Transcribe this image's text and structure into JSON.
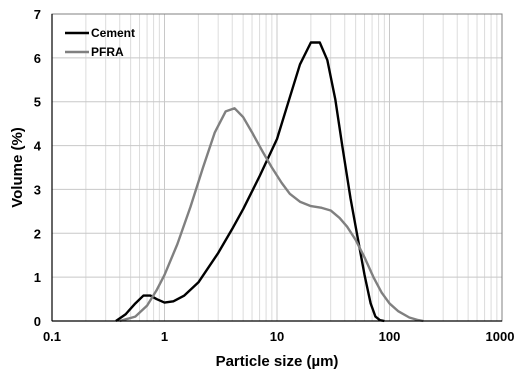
{
  "chart_data": {
    "type": "line",
    "xlabel": "Particle size (µm)",
    "ylabel": "Volume (%)",
    "x_scale": "log",
    "xlim": [
      0.1,
      1000
    ],
    "ylim": [
      0,
      7
    ],
    "x_ticks": [
      0.1,
      1,
      10,
      100,
      1000
    ],
    "x_tick_labels": [
      "0.1",
      "1",
      "10",
      "100",
      "1000"
    ],
    "y_ticks": [
      0,
      1,
      2,
      3,
      4,
      5,
      6,
      7
    ],
    "y_tick_labels": [
      "0",
      "1",
      "2",
      "3",
      "4",
      "5",
      "6",
      "7"
    ],
    "grid": true,
    "legend_position": "top-left",
    "series": [
      {
        "name": "Cement",
        "color": "#000000",
        "x": [
          0.37,
          0.45,
          0.55,
          0.65,
          0.75,
          0.85,
          1.0,
          1.2,
          1.5,
          2.0,
          3.0,
          4.0,
          5.0,
          7.0,
          10,
          13,
          16,
          20,
          24,
          28,
          33,
          38,
          45,
          53,
          60,
          68,
          75,
          82,
          90
        ],
        "y": [
          0,
          0.15,
          0.4,
          0.58,
          0.58,
          0.5,
          0.42,
          0.45,
          0.58,
          0.88,
          1.55,
          2.1,
          2.55,
          3.3,
          4.15,
          5.1,
          5.85,
          6.35,
          6.35,
          5.95,
          5.05,
          4.0,
          2.8,
          1.8,
          1.05,
          0.4,
          0.1,
          0.02,
          0
        ]
      },
      {
        "name": "PFRA",
        "color": "#808080",
        "x": [
          0.4,
          0.55,
          0.7,
          0.85,
          1.0,
          1.3,
          1.7,
          2.2,
          2.8,
          3.5,
          4.2,
          5.0,
          6.0,
          7.5,
          9.0,
          11,
          13,
          16,
          20,
          25,
          30,
          36,
          42,
          50,
          60,
          72,
          85,
          100,
          120,
          150,
          180,
          200
        ],
        "y": [
          0,
          0.1,
          0.35,
          0.7,
          1.05,
          1.75,
          2.6,
          3.5,
          4.3,
          4.78,
          4.85,
          4.65,
          4.3,
          3.85,
          3.5,
          3.15,
          2.9,
          2.72,
          2.62,
          2.58,
          2.52,
          2.35,
          2.15,
          1.85,
          1.45,
          1.0,
          0.65,
          0.4,
          0.22,
          0.08,
          0.02,
          0
        ]
      }
    ]
  }
}
